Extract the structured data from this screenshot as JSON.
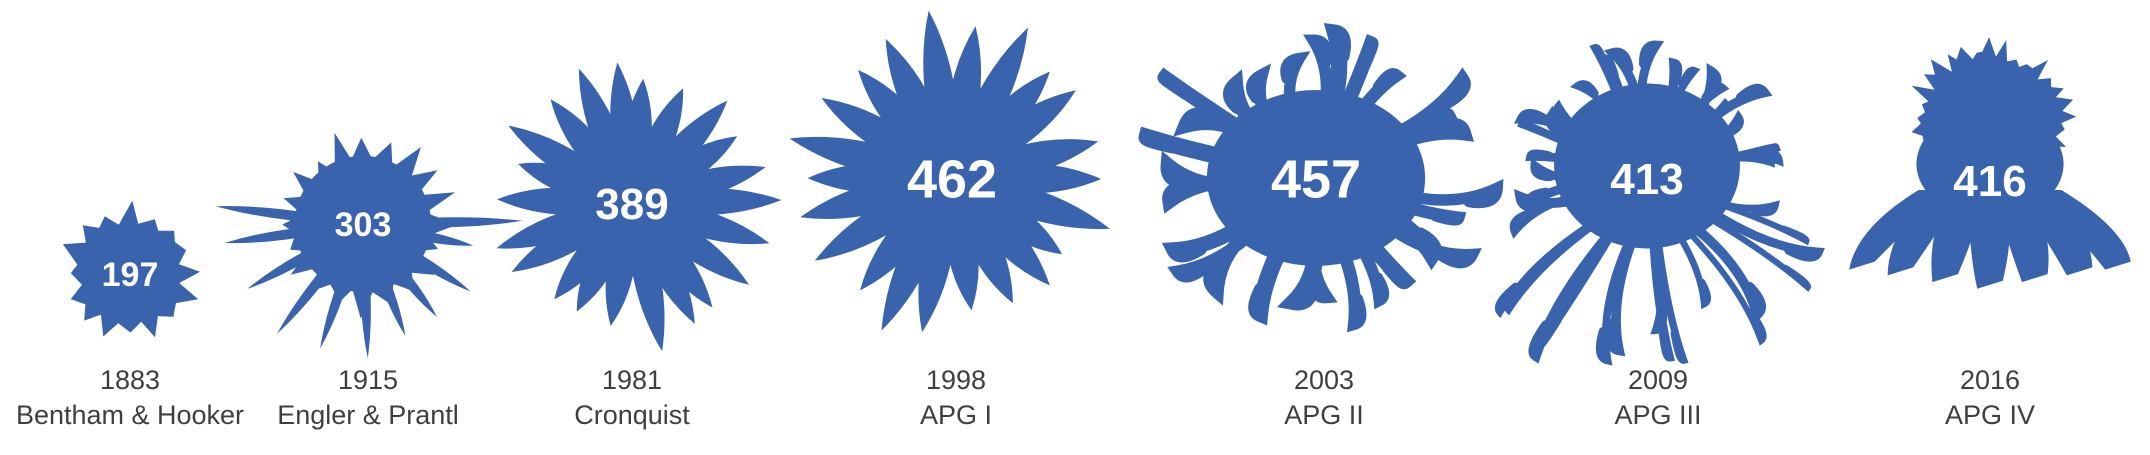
{
  "chart_data": {
    "type": "pictograph",
    "title": "",
    "value_unit": "",
    "color": "#3a63ad",
    "items": [
      {
        "year": "1883",
        "system": "Bentham & Hooker",
        "value": 197,
        "flower_icon": "small-compact-flower-icon"
      },
      {
        "year": "1915",
        "system": "Engler & Prantl",
        "value": 303,
        "flower_icon": "spiky-flower-icon"
      },
      {
        "year": "1981",
        "system": "Cronquist",
        "value": 389,
        "flower_icon": "daisy-flower-icon"
      },
      {
        "year": "1998",
        "system": "APG I",
        "value": 462,
        "flower_icon": "large-daisy-flower-icon"
      },
      {
        "year": "2003",
        "system": "APG II",
        "value": 457,
        "flower_icon": "curly-chrysanthemum-icon"
      },
      {
        "year": "2009",
        "system": "APG III",
        "value": 413,
        "flower_icon": "spider-mum-icon"
      },
      {
        "year": "2016",
        "system": "APG IV",
        "value": 416,
        "flower_icon": "coneflower-icon"
      }
    ]
  }
}
